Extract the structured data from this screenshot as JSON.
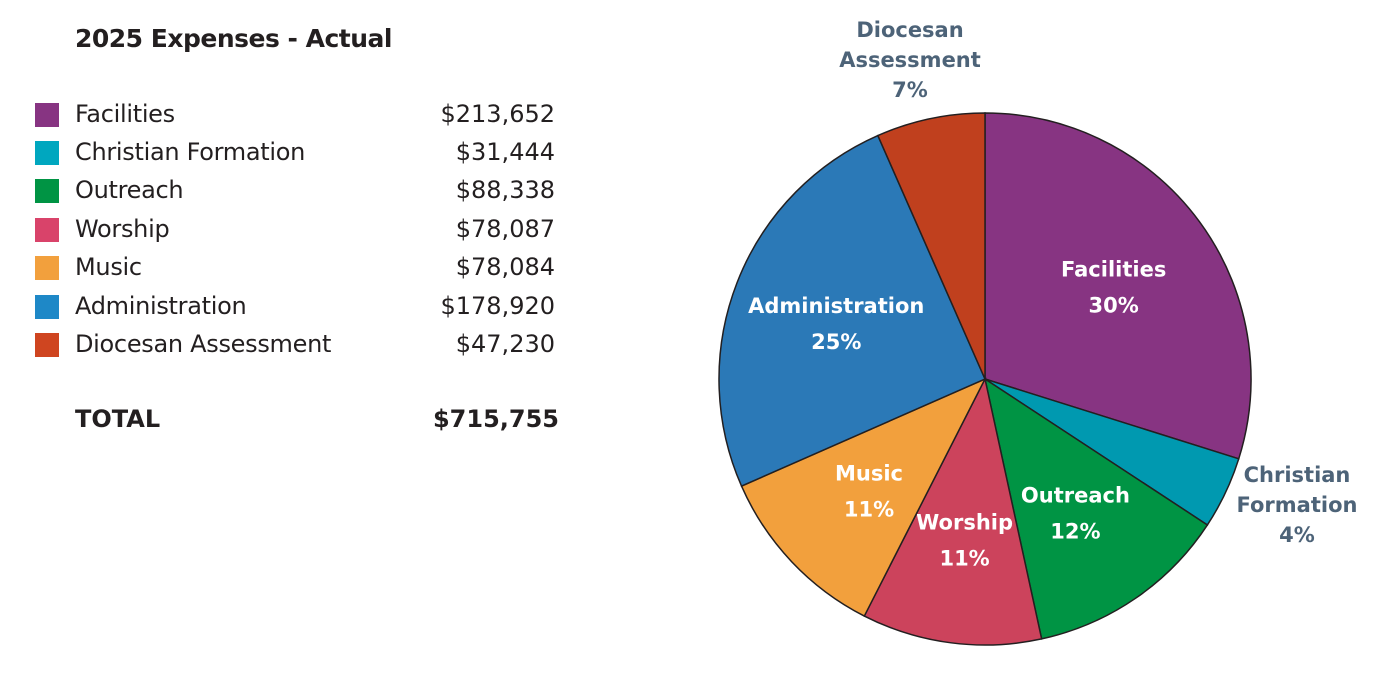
{
  "chart_data": {
    "type": "pie",
    "title": "2025 Expenses - Actual",
    "categories": [
      "Facilities",
      "Christian Formation",
      "Outreach",
      "Worship",
      "Music",
      "Administration",
      "Diocesan Assessment"
    ],
    "values": [
      213652,
      31444,
      88338,
      78087,
      78084,
      178920,
      47230
    ],
    "value_labels": [
      "$213,652",
      "$31,444",
      "$88,338",
      "$78,087",
      "$78,084",
      "$178,920",
      "$47,230"
    ],
    "percent_labels": [
      "30%",
      "4%",
      "12%",
      "11%",
      "11%",
      "25%",
      "7%"
    ],
    "slice_colors": [
      "#873482",
      "#0099b0",
      "#009444",
      "#cc435c",
      "#f2a03d",
      "#2b79b7",
      "#c0401e"
    ],
    "legend_colors": [
      "#873482",
      "#00a7bf",
      "#009444",
      "#d9436a",
      "#f2a03d",
      "#1e88c7",
      "#cf4520"
    ],
    "outside_label_color": "#4d6378",
    "legend": "left",
    "total_label": "TOTAL",
    "total_value": "$715,755"
  }
}
